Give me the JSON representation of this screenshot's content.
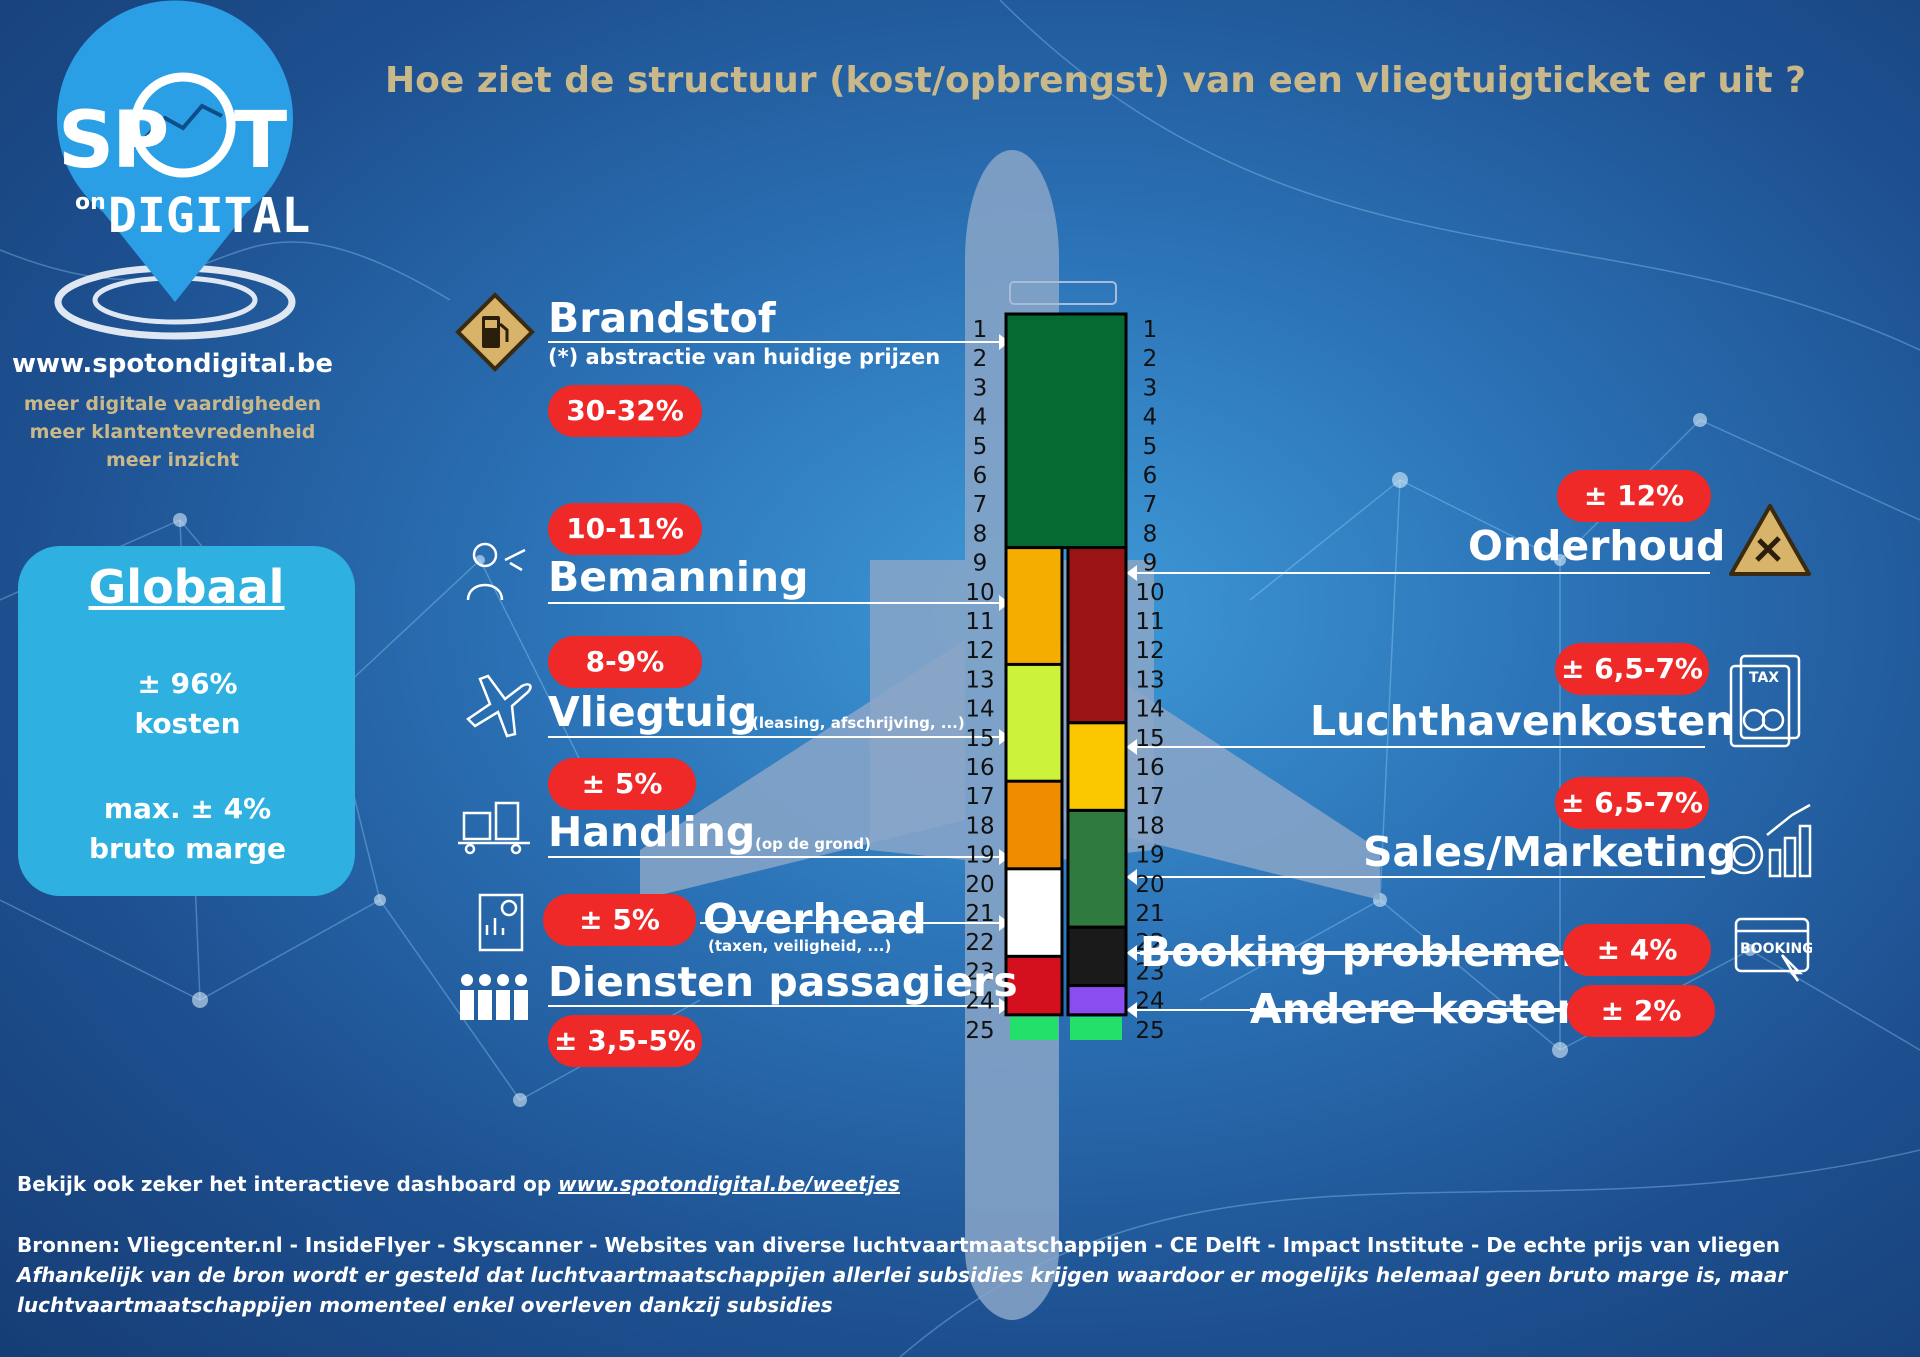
{
  "title": "Hoe ziet de structuur (kost/opbrengst) van een vliegtuigticket er uit ?",
  "logo": {
    "word_left": "SP",
    "word_right": "T",
    "sub_on": "on",
    "sub_digital": "DIGITAL"
  },
  "site": "www.spotondigital.be",
  "taglines": [
    "meer digitale vaardigheden",
    "meer klantentevredenheid",
    "meer inzicht"
  ],
  "global": {
    "title": "Globaal",
    "costs_line1": "± 96%",
    "costs_line2": "kosten",
    "margin_line1": "max. ± 4%",
    "margin_line2": "bruto marge",
    "costs_color": "#ef2828",
    "margin_color": "#0fbf5a"
  },
  "chart_data": {
    "type": "bar",
    "rows": [
      1,
      2,
      3,
      4,
      5,
      6,
      7,
      8,
      9,
      10,
      11,
      12,
      13,
      14,
      15,
      16,
      17,
      18,
      19,
      20,
      21,
      22,
      23,
      24,
      25
    ],
    "left_column": [
      {
        "name": "Brandstof",
        "note": "(*) abstractie van huidige prijzen",
        "share": "30-32%",
        "rows_from": 1,
        "rows_to": 8,
        "color": "#056a32"
      },
      {
        "name": "Bemanning",
        "note": "",
        "share": "10-11%",
        "rows_from": 9,
        "rows_to": 13,
        "color": "#f5ad00"
      },
      {
        "name": "Vliegtuig",
        "note": "(leasing, afschrijving, ...)",
        "share": "8-9%",
        "rows_from": 13,
        "rows_to": 17,
        "color": "#cdf23a"
      },
      {
        "name": "Handling",
        "note": "(op de grond)",
        "share": "± 5%",
        "rows_from": 17,
        "rows_to": 20,
        "color": "#f08c00"
      },
      {
        "name": "Overhead",
        "note": "(taxen, veiligheid, ...)",
        "share": "± 5%",
        "rows_from": 20,
        "rows_to": 22,
        "color": "#ffffff"
      },
      {
        "name": "Diensten passagiers",
        "note": "",
        "share": "± 3,5-5%",
        "rows_from": 23,
        "rows_to": 24,
        "color": "#d4101e"
      }
    ],
    "right_column": [
      {
        "name": "Onderhoud",
        "share": "± 12%",
        "rows_from": 9,
        "rows_to": 14,
        "color": "#9b1414"
      },
      {
        "name": "Luchthavenkosten",
        "share": "± 6,5-7%",
        "rows_from": 15,
        "rows_to": 17,
        "color": "#fbc800"
      },
      {
        "name": "Sales/Marketing",
        "share": "± 6,5-7%",
        "rows_from": 18,
        "rows_to": 21,
        "color": "#2f7a3e"
      },
      {
        "name": "Booking problemen",
        "share": "± 4%",
        "rows_from": 22,
        "rows_to": 23,
        "color": "#1a1a1a"
      },
      {
        "name": "Andere kosten",
        "share": "± 2%",
        "rows_from": 24,
        "rows_to": 24,
        "color": "#8a4df0"
      }
    ],
    "margin_row": {
      "row": 25,
      "color": "#23e06a"
    }
  },
  "footer": {
    "dashboard_prefix": "Bekijk ook zeker het interactieve dashboard op ",
    "dashboard_link": "www.spotondigital.be/weetjes",
    "sources": "Bronnen: Vliegcenter.nl - InsideFlyer - Skyscanner - Websites van diverse luchtvaartmaatschappijen - CE Delft - Impact Institute - De echte prijs van vliegen",
    "disclaimer1": "Afhankelijk van de bron wordt er gesteld dat luchtvaartmaatschappijen allerlei subsidies krijgen waardoor er mogelijks helemaal geen bruto marge is, maar",
    "disclaimer2": "luchtvaartmaatschappijen momenteel enkel overleven dankzij subsidies"
  },
  "icons": [
    "fuel-pump-icon",
    "flight-attendant-icon",
    "airplane-icon",
    "luggage-cart-icon",
    "report-icon",
    "passengers-icon",
    "maintenance-tools-icon",
    "tax-receipt-icon",
    "sales-growth-icon",
    "booking-click-icon"
  ]
}
